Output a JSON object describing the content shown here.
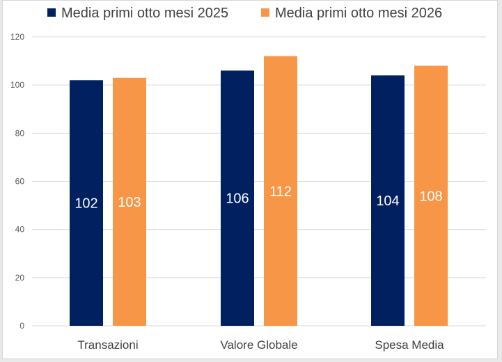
{
  "chart_data": {
    "type": "bar",
    "categories": [
      "Transazioni",
      "Valore Globale",
      "Spesa Media"
    ],
    "series": [
      {
        "name": "Media primi otto mesi 2025",
        "values": [
          102,
          106,
          104
        ],
        "color": "#002060"
      },
      {
        "name": "Media primi otto mesi 2026",
        "values": [
          103,
          112,
          108
        ],
        "color": "#F79646"
      }
    ],
    "ylim": [
      0,
      120
    ],
    "yticks": [
      "0",
      "20",
      "40",
      "60",
      "80",
      "100",
      "120"
    ],
    "grid": true,
    "legend_position": "top",
    "data_labels": true
  }
}
